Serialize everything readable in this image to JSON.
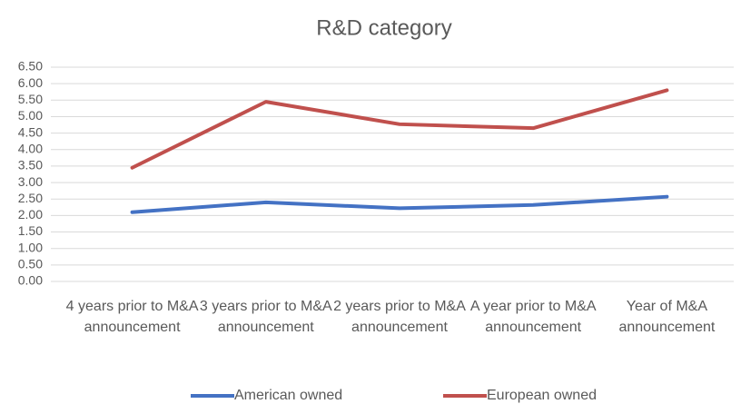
{
  "chart_data": {
    "type": "line",
    "title": "R&D category",
    "categories": [
      "4 years prior to M&A announcement",
      "3 years prior to M&A announcement",
      "2 years prior to M&A announcement",
      "A year prior to M&A announcement",
      "Year of M&A announcement"
    ],
    "series": [
      {
        "name": "American owned",
        "color": "#4472c4",
        "values": [
          2.1,
          2.4,
          2.22,
          2.32,
          2.57
        ]
      },
      {
        "name": "European owned",
        "color": "#c0504d",
        "values": [
          3.45,
          5.45,
          4.77,
          4.65,
          5.8
        ]
      }
    ],
    "ylim": [
      0,
      6.5
    ],
    "yticks": [
      {
        "value": 0,
        "label": "0.00"
      },
      {
        "value": 0.5,
        "label": "0.50"
      },
      {
        "value": 1,
        "label": "1.00"
      },
      {
        "value": 1.5,
        "label": "1.50"
      },
      {
        "value": 2,
        "label": "2.00"
      },
      {
        "value": 2.5,
        "label": "2.50"
      },
      {
        "value": 3,
        "label": "3.00"
      },
      {
        "value": 3.5,
        "label": "3.50"
      },
      {
        "value": 4,
        "label": "4.00"
      },
      {
        "value": 4.5,
        "label": "4.50"
      },
      {
        "value": 5,
        "label": "5.00"
      },
      {
        "value": 5.5,
        "label": "5.50"
      },
      {
        "value": 6,
        "label": "6.00"
      },
      {
        "value": 6.5,
        "label": "6.50"
      }
    ],
    "grid": true,
    "legend": "bottom"
  }
}
